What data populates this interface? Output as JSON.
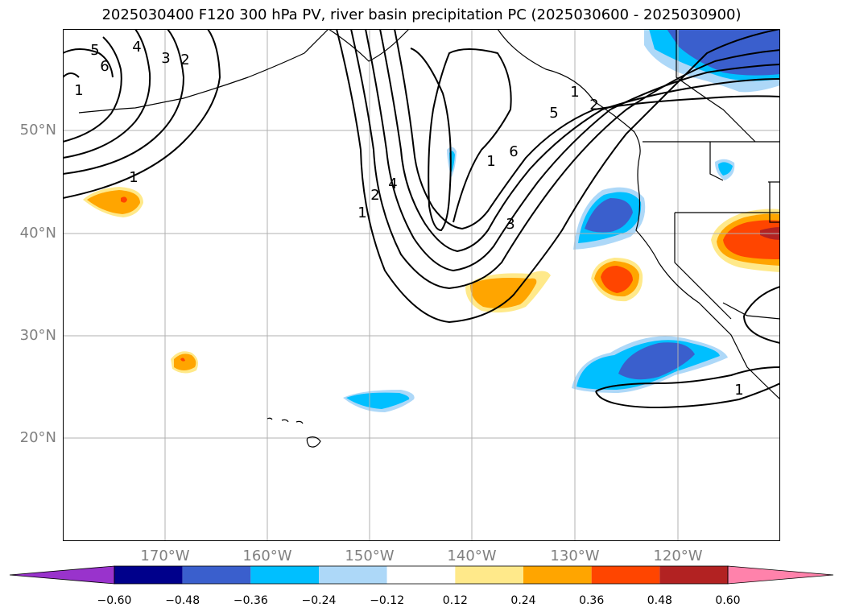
{
  "title": "2025030400 F120 300 hPa PV, river basin precipitation PC (2025030600 - 2025030900)",
  "lat_labels": [
    "50°N",
    "40°N",
    "30°N",
    "20°N"
  ],
  "lon_labels": [
    "170°W",
    "160°W",
    "150°W",
    "140°W",
    "130°W",
    "120°W"
  ],
  "contour_labels": [
    "5",
    "6",
    "4",
    "3",
    "2",
    "1",
    "1",
    "2",
    "4",
    "1",
    "6",
    "5",
    "3",
    "1",
    "2",
    "1",
    "1"
  ],
  "colorbar": {
    "ticks": [
      "−0.60",
      "−0.48",
      "−0.36",
      "−0.24",
      "−0.12",
      "0.12",
      "0.24",
      "0.36",
      "0.48",
      "0.60"
    ],
    "colors": [
      "#9933cc",
      "#00008b",
      "#3a5fcd",
      "#00bfff",
      "#add8f8",
      "#ffffff",
      "#ffe98a",
      "#ffa500",
      "#ff4500",
      "#b22222",
      "#ff82ab"
    ]
  },
  "colors": {
    "contour": "#000000",
    "gridline": "#b0b0b0",
    "label": "#808080"
  }
}
